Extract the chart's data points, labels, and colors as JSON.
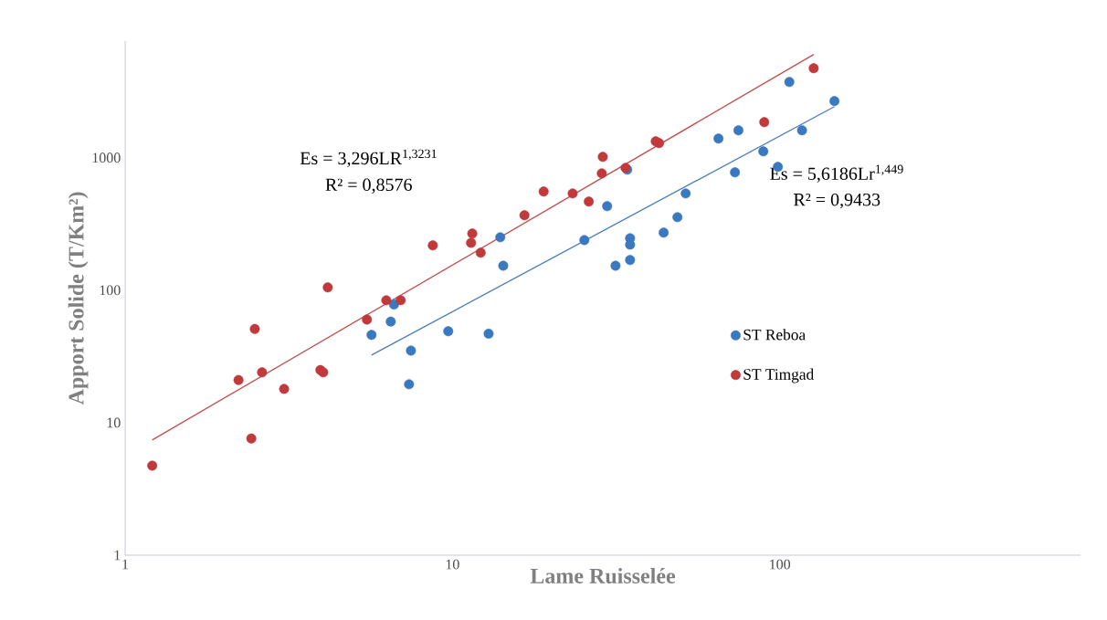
{
  "chart_data": {
    "type": "scatter",
    "xlabel": "Lame Ruisselée",
    "ylabel": "Apport Solide (T/Km²)",
    "log": "xy",
    "xlim": [
      1,
      830
    ],
    "ylim": [
      1,
      7600
    ],
    "xticks": [
      1,
      10,
      100
    ],
    "yticks": [
      1,
      10,
      100,
      1000
    ],
    "grid": false,
    "legend": "right",
    "series": [
      {
        "name": "ST Reboa",
        "color": "#3a78c0",
        "marker": "circle",
        "x": [
          5.66,
          6.48,
          6.63,
          7.47,
          7.37,
          9.71,
          12.9,
          14,
          14.3,
          25.3,
          29.7,
          31.5,
          34.2,
          34.9,
          34.9,
          34.9,
          44.2,
          48.7,
          51.6,
          65,
          73,
          74.8,
          89.1,
          98.7,
          107,
          117,
          147
        ],
        "values": [
          46,
          58,
          78,
          35,
          19.5,
          49,
          47,
          251,
          153,
          239,
          431,
          153,
          813,
          221,
          247,
          169,
          272,
          356,
          538,
          1396,
          776,
          1610,
          1117,
          853,
          3733,
          1610,
          2680
        ]
      },
      {
        "name": "ST Timgad",
        "color": "#c0393b",
        "marker": "circle",
        "x": [
          1.21,
          2.22,
          2.49,
          2.43,
          2.62,
          3.06,
          3.95,
          4.03,
          4.16,
          5.48,
          6.28,
          6.95,
          8.71,
          11.4,
          11.5,
          12.2,
          16.6,
          19,
          23.3,
          26.1,
          28.6,
          28.8,
          33.8,
          41.8,
          42.8,
          89.7,
          127
        ],
        "values": [
          4.74,
          21,
          51,
          7.6,
          24,
          18,
          25,
          24,
          105,
          60,
          84,
          84,
          218,
          228,
          268,
          192,
          368,
          556,
          538,
          467,
          763,
          1016,
          839,
          1331,
          1290,
          1858,
          4740
        ]
      },
      {
        "color": "#c0504d",
        "type": "line",
        "x": [
          1.21,
          127
        ],
        "values": [
          7.4,
          6020
        ]
      },
      {
        "color": "#4a7ebb",
        "type": "line",
        "x": [
          5.66,
          147
        ],
        "values": [
          32.4,
          2432
        ]
      }
    ],
    "annotations": [
      "Es = 3,296LR$^{1,3231}$",
      "R² = 0,8576",
      "Es = 5,6186Lr$^{1,449}$",
      "R² = 0,9433"
    ]
  }
}
